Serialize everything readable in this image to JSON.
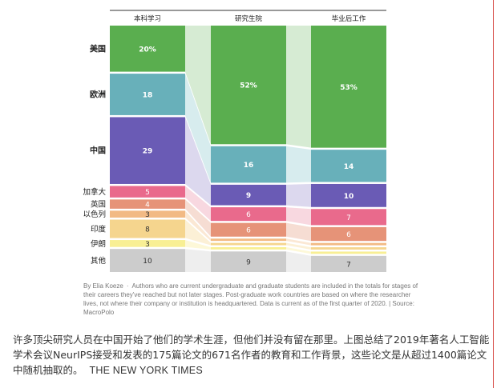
{
  "chart_data": {
    "type": "stacked-bar",
    "title": "",
    "categories": [
      "本科学习",
      "研究生院",
      "毕业后工作"
    ],
    "series": [
      {
        "name": "美国",
        "values": [
          20,
          52,
          53
        ],
        "labels": [
          "20%",
          "52%",
          "53%"
        ],
        "color": "#5aae4f",
        "band": "#d6ebd3",
        "text_color": "#ffffff"
      },
      {
        "name": "欧洲",
        "values": [
          18,
          16,
          14
        ],
        "labels": [
          "18",
          "16",
          "14"
        ],
        "color": "#68b0ba",
        "band": "#d7ecee",
        "text_color": "#ffffff"
      },
      {
        "name": "中国",
        "values": [
          29,
          9,
          10
        ],
        "labels": [
          "29",
          "9",
          "10"
        ],
        "color": "#6a5bb5",
        "band": "#dcd8ee",
        "text_color": "#ffffff"
      },
      {
        "name": "加拿大",
        "values": [
          5,
          6,
          7
        ],
        "labels": [
          "5",
          "6",
          "7"
        ],
        "color": "#e96a8c",
        "band": "#f8d8e0",
        "text_color": "#ffffff"
      },
      {
        "name": "英国",
        "values": [
          4,
          6,
          6
        ],
        "labels": [
          "4",
          "6",
          "6"
        ],
        "color": "#e69378",
        "band": "#f6ddd3",
        "text_color": "#ffffff"
      },
      {
        "name": "以色列",
        "values": [
          3,
          1,
          1
        ],
        "labels": [
          "3",
          "",
          ""
        ],
        "color": "#f2ba84",
        "band": "#fbe8d4",
        "text_color": "#333333"
      },
      {
        "name": "印度",
        "values": [
          8,
          1,
          1
        ],
        "labels": [
          "8",
          "",
          ""
        ],
        "color": "#f5d58e",
        "band": "#fcf0d6",
        "text_color": "#333333"
      },
      {
        "name": "伊朗",
        "values": [
          3,
          1,
          1
        ],
        "labels": [
          "3",
          "",
          ""
        ],
        "color": "#f8ef94",
        "band": "#fdf8d8",
        "text_color": "#333333"
      },
      {
        "name": "其他",
        "values": [
          10,
          9,
          7
        ],
        "labels": [
          "10",
          "9",
          "7"
        ],
        "color": "#cccccc",
        "band": "#eeeeee",
        "text_color": "#333333"
      }
    ]
  },
  "credit": {
    "author": "By Elia Koeze",
    "separator": "·",
    "note": "Authors who are current undergraduate and graduate students are included in the totals for stages of their careers they've reached but not later stages. Post-graduate work countries are based on where the researcher lives, not where their company or institution is headquartered. Data is current as of the first quarter of 2020. | Source: MacroPolo"
  },
  "caption": {
    "text": "许多顶尖研究人员在中国开始了他们的学术生涯，但他们并没有留在那里。上图总结了2019年著名人工智能学术会议NeurIPS接受和发表的175篇论文的671名作者的教育和工作背景，这些论文是从超过1400篇论文中随机抽取的。",
    "source": "THE NEW YORK TIMES"
  },
  "colors": {
    "border_accent": "#d9534f",
    "caption_text": "#333333",
    "credit_text": "#777777"
  }
}
